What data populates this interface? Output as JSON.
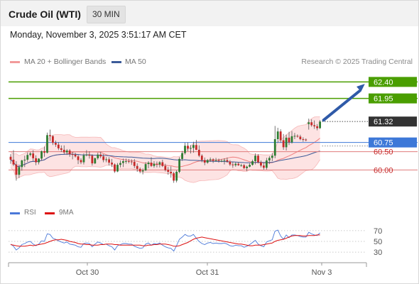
{
  "header": {
    "instrument": "Crude Oil (WTI)",
    "timeframe": "30 MIN"
  },
  "timestamp": "Monday, November 3, 2025 3:51:17 AM CET",
  "legend": {
    "ma20_bb": {
      "label": "MA 20 + Bollinger Bands",
      "color": "#f29a9a"
    },
    "ma50": {
      "label": "MA 50",
      "color": "#3c5b99"
    },
    "copyright": "Research © 2025 Trading Central"
  },
  "rsi_legend": {
    "rsi": {
      "label": "RSI",
      "color": "#4a78d8"
    },
    "ma9": {
      "label": "9MA",
      "color": "#dd1111"
    }
  },
  "colors": {
    "bull": "#2e7d32",
    "bear": "#c62828",
    "resistance": "#4a9e00",
    "pivot": "#3d78d8",
    "support": "#e07b7b",
    "price_tag": "#333333",
    "arrow": "#2f5aa8"
  },
  "chart_data": [
    {
      "type": "candlestick",
      "ylim": [
        59.35,
        62.62
      ],
      "x_labels": [
        "Oct 30",
        "Oct 31",
        "Nov 3"
      ],
      "levels": [
        {
          "value": 62.4,
          "label": "62.40",
          "kind": "resistance"
        },
        {
          "value": 61.95,
          "label": "61.95",
          "kind": "resistance"
        },
        {
          "value": 60.75,
          "label": "60.75",
          "kind": "pivot"
        },
        {
          "value": 60.5,
          "label": "60.50",
          "kind": "support"
        },
        {
          "value": 60.0,
          "label": "60.00",
          "kind": "support"
        }
      ],
      "last_price": {
        "value": 61.32,
        "label": "61.32"
      },
      "forecast_arrow": {
        "from": 61.32,
        "to": 62.4,
        "direction": "up"
      },
      "candles": [
        [
          60.36,
          60.43,
          60.17,
          60.28
        ],
        [
          60.28,
          60.54,
          60.11,
          60.15
        ],
        [
          60.15,
          60.24,
          59.71,
          59.87
        ],
        [
          59.87,
          60.15,
          59.78,
          60.08
        ],
        [
          60.08,
          60.28,
          59.98,
          60.26
        ],
        [
          60.26,
          60.39,
          60.08,
          60.28
        ],
        [
          60.28,
          60.48,
          60.22,
          60.41
        ],
        [
          60.41,
          60.49,
          60.37,
          60.45
        ],
        [
          60.45,
          60.54,
          60.25,
          60.32
        ],
        [
          60.32,
          60.4,
          60.13,
          60.21
        ],
        [
          60.21,
          60.32,
          60.15,
          60.31
        ],
        [
          60.31,
          60.53,
          60.25,
          60.51
        ],
        [
          60.51,
          60.64,
          60.36,
          60.47
        ],
        [
          60.47,
          61.02,
          60.45,
          60.95
        ],
        [
          60.95,
          61.1,
          60.79,
          60.92
        ],
        [
          60.92,
          60.95,
          60.68,
          60.74
        ],
        [
          60.74,
          60.8,
          60.63,
          60.69
        ],
        [
          60.69,
          60.76,
          60.54,
          60.59
        ],
        [
          60.59,
          60.67,
          60.49,
          60.55
        ],
        [
          60.55,
          60.67,
          60.43,
          60.48
        ],
        [
          60.48,
          60.57,
          60.41,
          60.53
        ],
        [
          60.53,
          60.57,
          60.36,
          60.43
        ],
        [
          60.43,
          60.49,
          60.29,
          60.42
        ],
        [
          60.42,
          60.47,
          60.34,
          60.37
        ],
        [
          60.37,
          60.42,
          60.16,
          60.27
        ],
        [
          60.27,
          60.32,
          60.16,
          60.21
        ],
        [
          60.21,
          60.45,
          60.15,
          60.4
        ],
        [
          60.4,
          60.54,
          60.37,
          60.42
        ],
        [
          60.42,
          60.51,
          60.31,
          60.39
        ],
        [
          60.39,
          60.43,
          60.12,
          60.18
        ],
        [
          60.18,
          60.34,
          60.16,
          60.32
        ],
        [
          60.32,
          60.47,
          60.28,
          60.42
        ],
        [
          60.42,
          60.49,
          60.32,
          60.37
        ],
        [
          60.37,
          60.43,
          60.21,
          60.27
        ],
        [
          60.27,
          60.35,
          60.21,
          60.29
        ],
        [
          60.29,
          60.35,
          60.13,
          60.2
        ],
        [
          60.2,
          60.3,
          60.08,
          60.15
        ],
        [
          60.15,
          60.18,
          59.92,
          59.96
        ],
        [
          59.96,
          60.19,
          59.94,
          60.14
        ],
        [
          60.14,
          60.26,
          60.07,
          60.19
        ],
        [
          60.19,
          60.31,
          60.08,
          60.24
        ],
        [
          60.24,
          60.31,
          60.17,
          60.24
        ],
        [
          60.24,
          60.3,
          60.18,
          60.23
        ],
        [
          60.23,
          60.29,
          60.14,
          60.22
        ],
        [
          60.22,
          60.3,
          60.05,
          60.11
        ],
        [
          60.11,
          60.18,
          59.95,
          60.03
        ],
        [
          60.03,
          60.07,
          59.91,
          59.96
        ],
        [
          59.96,
          60.04,
          59.88,
          59.99
        ],
        [
          59.99,
          60.21,
          59.97,
          60.16
        ],
        [
          60.16,
          60.24,
          60.05,
          60.2
        ],
        [
          60.2,
          60.35,
          60.08,
          60.11
        ],
        [
          60.11,
          60.24,
          60.06,
          60.17
        ],
        [
          60.17,
          60.23,
          60.07,
          60.15
        ],
        [
          60.15,
          60.24,
          60.07,
          60.21
        ],
        [
          60.21,
          60.28,
          60.08,
          60.11
        ],
        [
          60.11,
          60.17,
          59.96,
          60
        ],
        [
          60,
          60.08,
          59.87,
          59.95
        ],
        [
          59.95,
          60.1,
          59.79,
          59.91
        ],
        [
          59.91,
          59.95,
          59.65,
          59.71
        ],
        [
          59.71,
          59.99,
          59.66,
          59.95
        ],
        [
          59.95,
          60.35,
          59.91,
          60.3
        ],
        [
          60.3,
          60.52,
          60.25,
          60.46
        ],
        [
          60.46,
          60.74,
          60.42,
          60.66
        ],
        [
          60.66,
          60.75,
          60.51,
          60.58
        ],
        [
          60.58,
          60.68,
          60.45,
          60.6
        ],
        [
          60.6,
          60.77,
          60.47,
          60.68
        ],
        [
          60.68,
          60.82,
          60.54,
          60.55
        ],
        [
          60.55,
          60.67,
          60.35,
          60.39
        ],
        [
          60.39,
          60.43,
          60.21,
          60.27
        ],
        [
          60.27,
          60.34,
          60.13,
          60.2
        ],
        [
          60.2,
          60.3,
          60.17,
          60.27
        ],
        [
          60.27,
          60.34,
          60.22,
          60.29
        ],
        [
          60.29,
          60.32,
          60.19,
          60.25
        ],
        [
          60.25,
          60.33,
          60.23,
          60.27
        ],
        [
          60.27,
          60.31,
          60.2,
          60.25
        ],
        [
          60.25,
          60.3,
          60.21,
          60.25
        ],
        [
          60.25,
          60.32,
          60.15,
          60.27
        ],
        [
          60.27,
          60.34,
          60.2,
          60.23
        ],
        [
          60.23,
          60.27,
          60.11,
          60.15
        ],
        [
          60.15,
          60.22,
          60.06,
          60.13
        ],
        [
          60.13,
          60.21,
          60.09,
          60.17
        ],
        [
          60.17,
          60.22,
          60.11,
          60.13
        ],
        [
          60.13,
          60.17,
          60.09,
          60.13
        ],
        [
          60.13,
          60.16,
          60.03,
          60.05
        ],
        [
          60.05,
          60.12,
          59.97,
          60.09
        ],
        [
          60.09,
          60.18,
          60.07,
          60.14
        ],
        [
          60.14,
          60.28,
          60.12,
          60.24
        ],
        [
          60.24,
          60.45,
          60.15,
          60.39
        ],
        [
          60.39,
          60.43,
          60.18,
          60.21
        ],
        [
          60.21,
          60.26,
          60.07,
          60.12
        ],
        [
          60.12,
          60.19,
          60.01,
          60.06
        ],
        [
          60.06,
          60.33,
          60.01,
          60.26
        ],
        [
          60.26,
          60.38,
          60.16,
          60.33
        ],
        [
          60.33,
          60.46,
          60.24,
          60.39
        ],
        [
          60.39,
          61.2,
          60.32,
          60.84
        ],
        [
          60.84,
          61.15,
          60.74,
          61.05
        ],
        [
          61.05,
          61.11,
          60.74,
          60.81
        ],
        [
          60.81,
          60.98,
          60.55,
          60.62
        ],
        [
          60.62,
          60.96,
          60.53,
          60.88
        ],
        [
          60.88,
          61.04,
          60.68,
          60.75
        ],
        [
          60.75,
          61.06,
          60.72,
          60.92
        ],
        [
          60.92,
          61.01,
          60.84,
          60.93
        ],
        [
          60.93,
          60.97,
          60.88,
          60.91
        ],
        [
          60.91,
          60.96,
          60.81,
          60.84
        ],
        [
          60.84,
          60.89,
          60.77,
          60.83
        ],
        [
          60.83,
          60.86,
          60.78,
          60.82
        ],
        [
          61.25,
          61.4,
          61.1,
          61.3
        ],
        [
          61.3,
          61.38,
          61.18,
          61.22
        ],
        [
          61.22,
          61.35,
          61.12,
          61.19
        ],
        [
          61.19,
          61.25,
          61.08,
          61.14
        ],
        [
          61.14,
          61.36,
          61.12,
          61.32
        ]
      ]
    },
    {
      "type": "line",
      "name": "RSI",
      "ylim": [
        17,
        83
      ],
      "y_ticks": [
        70,
        50,
        30
      ],
      "series": [
        {
          "name": "RSI",
          "values": [
            45,
            41,
            34,
            38,
            44,
            46,
            49,
            50,
            45,
            42,
            45,
            51,
            50,
            64,
            63,
            56,
            54,
            51,
            49,
            47,
            49,
            45,
            44,
            43,
            40,
            39,
            46,
            47,
            46,
            40,
            45,
            49,
            47,
            44,
            45,
            42,
            40,
            34,
            42,
            44,
            46,
            46,
            45,
            45,
            41,
            39,
            37,
            38,
            45,
            47,
            43,
            46,
            45,
            47,
            43,
            40,
            38,
            37,
            32,
            42,
            54,
            58,
            63,
            60,
            60,
            63,
            56,
            50,
            46,
            44,
            47,
            48,
            46,
            47,
            46,
            46,
            47,
            45,
            42,
            41,
            43,
            42,
            42,
            39,
            41,
            44,
            48,
            52,
            45,
            42,
            40,
            49,
            51,
            53,
            69,
            71,
            60,
            54,
            62,
            57,
            62,
            62,
            61,
            59,
            58,
            58,
            67,
            64,
            62,
            61,
            66
          ]
        },
        {
          "name": "9MA",
          "values": [
            44,
            43,
            42,
            41,
            41,
            41,
            42,
            43,
            42,
            43,
            44,
            45,
            46,
            48,
            50,
            52,
            53,
            53,
            54,
            53,
            52,
            50,
            49,
            48,
            46,
            45,
            45,
            44,
            44,
            43,
            43,
            43,
            44,
            44,
            45,
            45,
            45,
            44,
            44,
            43,
            43,
            43,
            43,
            43,
            43,
            43,
            43,
            42,
            42,
            43,
            43,
            44,
            44,
            45,
            45,
            45,
            44,
            43,
            41,
            41,
            42,
            44,
            46,
            48,
            51,
            54,
            56,
            57,
            58,
            57,
            56,
            55,
            54,
            53,
            52,
            51,
            50,
            49,
            48,
            47,
            46,
            45,
            45,
            44,
            43,
            42,
            42,
            43,
            43,
            43,
            44,
            45,
            46,
            47,
            50,
            52,
            53,
            54,
            56,
            58,
            60,
            61,
            61,
            61,
            60,
            60,
            61,
            61,
            61,
            62,
            62
          ]
        }
      ]
    }
  ]
}
